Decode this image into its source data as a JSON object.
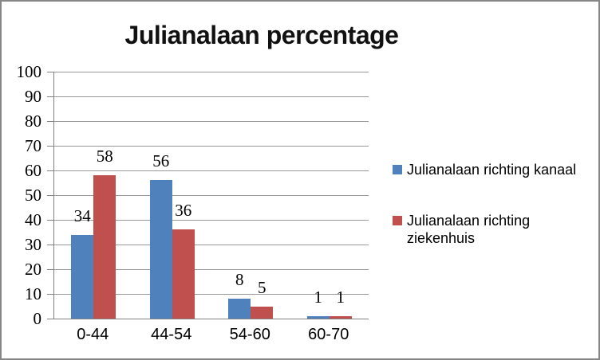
{
  "window": {
    "background": "#FFFFFF",
    "border_color": "#878787"
  },
  "chart_data": {
    "type": "bar",
    "title": "Julianalaan percentage",
    "categories": [
      "0-44",
      "44-54",
      "54-60",
      "60-70"
    ],
    "series": [
      {
        "name": "Julianalaan richting kanaal",
        "color": "#4F81BD",
        "values": [
          34,
          56,
          8,
          1
        ]
      },
      {
        "name": "Julianalaan richting ziekenhuis",
        "color": "#C0504D",
        "values": [
          58,
          36,
          5,
          1
        ]
      }
    ],
    "legend_labels": [
      "Julianalaan richting kanaal",
      "Julianalaan richting\nziekenhuis"
    ],
    "legend_position": "right",
    "data_labels": true,
    "xlabel": "",
    "ylabel": "",
    "ylim": [
      0,
      100
    ],
    "ytick_step": 10,
    "yticks": [
      0,
      10,
      20,
      30,
      40,
      50,
      60,
      70,
      80,
      90,
      100
    ],
    "grid": true,
    "grid_color": "#989898",
    "axis_color": "#808080"
  }
}
